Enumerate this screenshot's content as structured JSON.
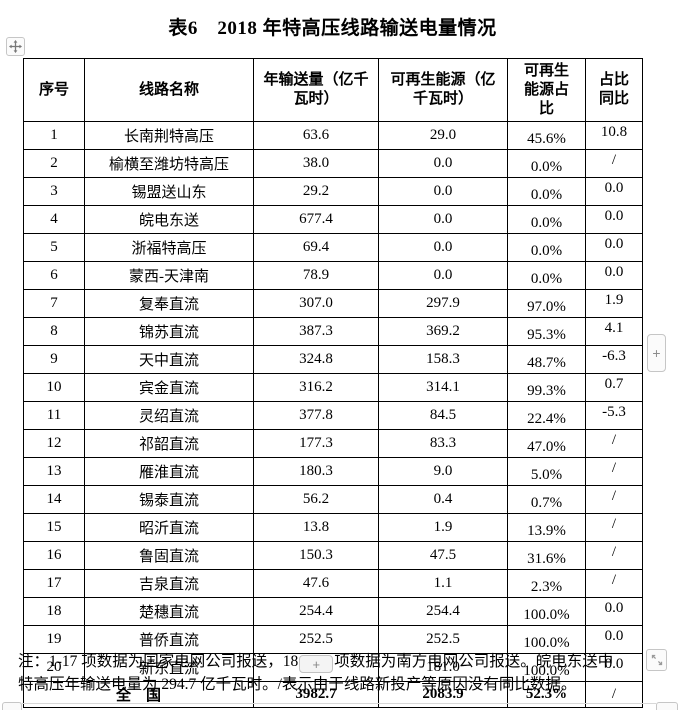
{
  "title": "表6　2018 年特高压线路输送电量情况",
  "table": {
    "columns": [
      {
        "key": "no",
        "label": "序号"
      },
      {
        "key": "name",
        "label": "线路名称"
      },
      {
        "key": "annual",
        "label": "年输送量（亿千\n瓦时）"
      },
      {
        "key": "renewable",
        "label": "可再生能源（亿\n千瓦时）"
      },
      {
        "key": "share",
        "label": "可再生\n能源占\n比"
      },
      {
        "key": "yoy",
        "label": "占比\n同比"
      }
    ],
    "rows": [
      [
        "1",
        "长南荆特高压",
        "63.6",
        "29.0",
        "45.6%",
        "10.8"
      ],
      [
        "2",
        "榆横至潍坊特高压",
        "38.0",
        "0.0",
        "0.0%",
        "/"
      ],
      [
        "3",
        "锡盟送山东",
        "29.2",
        "0.0",
        "0.0%",
        "0.0"
      ],
      [
        "4",
        "皖电东送",
        "677.4",
        "0.0",
        "0.0%",
        "0.0"
      ],
      [
        "5",
        "浙福特高压",
        "69.4",
        "0.0",
        "0.0%",
        "0.0"
      ],
      [
        "6",
        "蒙西-天津南",
        "78.9",
        "0.0",
        "0.0%",
        "0.0"
      ],
      [
        "7",
        "复奉直流",
        "307.0",
        "297.9",
        "97.0%",
        "1.9"
      ],
      [
        "8",
        "锦苏直流",
        "387.3",
        "369.2",
        "95.3%",
        "4.1"
      ],
      [
        "9",
        "天中直流",
        "324.8",
        "158.3",
        "48.7%",
        "-6.3"
      ],
      [
        "10",
        "宾金直流",
        "316.2",
        "314.1",
        "99.3%",
        "0.7"
      ],
      [
        "11",
        "灵绍直流",
        "377.8",
        "84.5",
        "22.4%",
        "-5.3"
      ],
      [
        "12",
        "祁韶直流",
        "177.3",
        "83.3",
        "47.0%",
        "/"
      ],
      [
        "13",
        "雁淮直流",
        "180.3",
        "9.0",
        "5.0%",
        "/"
      ],
      [
        "14",
        "锡泰直流",
        "56.2",
        "0.4",
        "0.7%",
        "/"
      ],
      [
        "15",
        "昭沂直流",
        "13.8",
        "1.9",
        "13.9%",
        "/"
      ],
      [
        "16",
        "鲁固直流",
        "150.3",
        "47.5",
        "31.6%",
        "/"
      ],
      [
        "17",
        "吉泉直流",
        "47.6",
        "1.1",
        "2.3%",
        "/"
      ],
      [
        "18",
        "楚穗直流",
        "254.4",
        "254.4",
        "100.0%",
        "0.0"
      ],
      [
        "19",
        "普侨直流",
        "252.5",
        "252.5",
        "100.0%",
        "0.0"
      ],
      [
        "20",
        "新东直流",
        "181.0",
        "181.0",
        "100.0%",
        "0.0"
      ]
    ],
    "total_row": {
      "label": "全　国",
      "annual": "3982.7",
      "renewable": "2083.9",
      "share": "52.3%",
      "yoy": "/"
    }
  },
  "note": {
    "line1_before": "注：1-17 项数据为国家电网公司报送，18",
    "line1_after": "项数据为南方电网公司报送。皖电东送中",
    "line2": "特高压年输送电量为 294.7 亿千瓦时。/表示由于线路新投产等原因没有同比数据。"
  },
  "controls": {
    "insert_plus_label": "+"
  },
  "colors": {
    "text": "#000000",
    "table_border": "#000000",
    "control_border": "#c6c6c6",
    "control_bg": "#fbfbfb",
    "control_glyph": "#8c8c8c"
  }
}
